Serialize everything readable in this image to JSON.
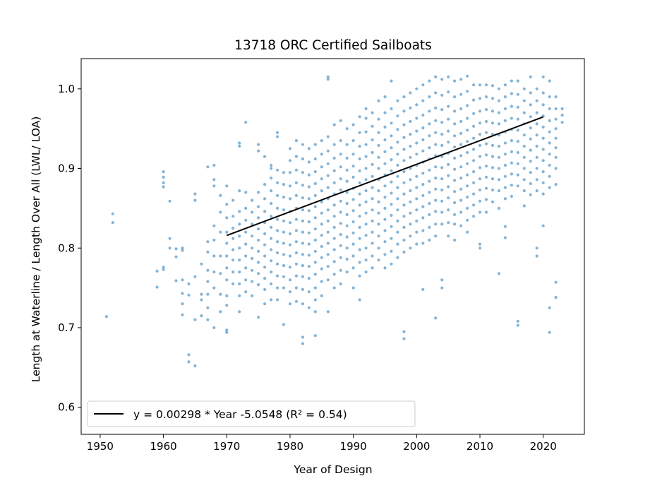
{
  "chart_data": {
    "type": "scatter",
    "title": "13718 ORC Certified Sailboats",
    "xlabel": "Year of Design",
    "ylabel": "Length at Waterline / Length Over All (LWL/ LOA)",
    "xlim": [
      1947,
      2026.5
    ],
    "ylim": [
      0.566,
      1.038
    ],
    "xticks": [
      "1950",
      "1960",
      "1970",
      "1980",
      "1990",
      "2000",
      "2010",
      "2020"
    ],
    "yticks": [
      "0.6",
      "0.7",
      "0.8",
      "0.9",
      "1.0"
    ],
    "grid": false,
    "legend_position": "bottom-left",
    "point_color": "#1f77b4",
    "fit_color": "#000000",
    "fit_line": {
      "label": "y = 0.00298 * Year -5.0548 (R² = 0.54)",
      "slope": 0.00298,
      "intercept": -5.0548,
      "x_range": [
        1970,
        2020
      ]
    },
    "point_clusters": [
      {
        "x": 1951,
        "y": [
          0.714
        ]
      },
      {
        "x": 1952,
        "y": [
          0.843,
          0.832
        ]
      },
      {
        "x": 1959,
        "y": [
          0.771,
          0.751
        ]
      },
      {
        "x": 1960,
        "y": [
          0.896,
          0.889,
          0.882,
          0.877,
          0.776,
          0.773
        ]
      },
      {
        "x": 1961,
        "y": [
          0.859,
          0.812,
          0.8
        ]
      },
      {
        "x": 1962,
        "y": [
          0.799,
          0.789,
          0.759
        ]
      },
      {
        "x": 1963,
        "y": [
          0.8,
          0.797,
          0.76,
          0.743,
          0.73,
          0.716
        ]
      },
      {
        "x": 1964,
        "y": [
          0.755,
          0.741,
          0.666,
          0.657
        ]
      },
      {
        "x": 1965,
        "y": [
          0.868,
          0.86,
          0.764,
          0.71,
          0.652
        ]
      },
      {
        "x": 1966,
        "y": [
          0.78,
          0.742,
          0.735,
          0.715
        ]
      },
      {
        "x": 1967,
        "y": [
          0.902,
          0.808,
          0.795,
          0.772,
          0.758,
          0.742,
          0.725,
          0.71
        ]
      },
      {
        "x": 1968,
        "y": [
          0.904,
          0.886,
          0.878,
          0.828,
          0.81,
          0.79,
          0.77,
          0.75,
          0.7
        ]
      },
      {
        "x": 1969,
        "y": [
          0.866,
          0.845,
          0.82,
          0.79,
          0.768,
          0.742,
          0.72
        ]
      },
      {
        "x": 1970,
        "y": [
          0.878,
          0.855,
          0.838,
          0.82,
          0.806,
          0.79,
          0.775,
          0.76,
          0.74,
          0.728,
          0.697,
          0.694
        ]
      },
      {
        "x": 1971,
        "y": [
          0.86,
          0.84,
          0.825,
          0.812,
          0.798,
          0.785,
          0.77,
          0.755
        ]
      },
      {
        "x": 1972,
        "y": [
          0.932,
          0.928,
          0.872,
          0.846,
          0.83,
          0.815,
          0.8,
          0.785,
          0.77,
          0.755,
          0.74,
          0.72
        ]
      },
      {
        "x": 1973,
        "y": [
          0.958,
          0.87,
          0.85,
          0.835,
          0.82,
          0.805,
          0.79,
          0.775,
          0.76,
          0.745
        ]
      },
      {
        "x": 1974,
        "y": [
          0.86,
          0.845,
          0.83,
          0.815,
          0.8,
          0.787,
          0.772,
          0.758,
          0.74
        ]
      },
      {
        "x": 1975,
        "y": [
          0.93,
          0.922,
          0.87,
          0.852,
          0.838,
          0.824,
          0.81,
          0.796,
          0.782,
          0.768,
          0.754,
          0.713
        ]
      },
      {
        "x": 1976,
        "y": [
          0.915,
          0.88,
          0.862,
          0.846,
          0.832,
          0.818,
          0.804,
          0.79,
          0.776,
          0.762,
          0.748,
          0.73
        ]
      },
      {
        "x": 1977,
        "y": [
          0.904,
          0.9,
          0.888,
          0.872,
          0.856,
          0.84,
          0.826,
          0.812,
          0.798,
          0.784,
          0.77,
          0.755,
          0.735
        ]
      },
      {
        "x": 1978,
        "y": [
          0.945,
          0.94,
          0.898,
          0.882,
          0.866,
          0.85,
          0.836,
          0.822,
          0.808,
          0.794,
          0.78,
          0.765,
          0.75,
          0.735
        ]
      },
      {
        "x": 1979,
        "y": [
          0.895,
          0.88,
          0.864,
          0.848,
          0.834,
          0.82,
          0.806,
          0.792,
          0.778,
          0.764,
          0.75,
          0.704
        ]
      },
      {
        "x": 1980,
        "y": [
          0.925,
          0.91,
          0.895,
          0.878,
          0.862,
          0.846,
          0.832,
          0.818,
          0.804,
          0.79,
          0.776,
          0.76,
          0.745,
          0.73
        ]
      },
      {
        "x": 1981,
        "y": [
          0.935,
          0.915,
          0.898,
          0.882,
          0.866,
          0.85,
          0.836,
          0.822,
          0.808,
          0.794,
          0.78,
          0.765,
          0.75,
          0.733
        ]
      },
      {
        "x": 1982,
        "y": [
          0.93,
          0.912,
          0.895,
          0.879,
          0.863,
          0.848,
          0.834,
          0.82,
          0.806,
          0.792,
          0.778,
          0.764,
          0.748,
          0.73,
          0.688,
          0.68
        ]
      },
      {
        "x": 1983,
        "y": [
          0.925,
          0.908,
          0.892,
          0.877,
          0.862,
          0.847,
          0.833,
          0.819,
          0.805,
          0.791,
          0.777,
          0.762,
          0.745,
          0.725
        ]
      },
      {
        "x": 1984,
        "y": [
          0.93,
          0.912,
          0.896,
          0.881,
          0.866,
          0.852,
          0.838,
          0.824,
          0.81,
          0.796,
          0.782,
          0.767,
          0.75,
          0.735,
          0.72,
          0.69
        ]
      },
      {
        "x": 1985,
        "y": [
          0.935,
          0.918,
          0.902,
          0.887,
          0.872,
          0.858,
          0.844,
          0.83,
          0.816,
          0.802,
          0.788,
          0.774,
          0.758,
          0.74
        ]
      },
      {
        "x": 1986,
        "y": [
          1.015,
          1.012,
          0.94,
          0.922,
          0.906,
          0.891,
          0.876,
          0.862,
          0.848,
          0.834,
          0.82,
          0.806,
          0.792,
          0.777,
          0.76,
          0.72
        ]
      },
      {
        "x": 1987,
        "y": [
          0.955,
          0.93,
          0.913,
          0.897,
          0.882,
          0.868,
          0.854,
          0.84,
          0.826,
          0.812,
          0.798,
          0.783,
          0.767,
          0.75
        ]
      },
      {
        "x": 1988,
        "y": [
          0.96,
          0.935,
          0.918,
          0.902,
          0.887,
          0.873,
          0.859,
          0.845,
          0.831,
          0.817,
          0.803,
          0.788,
          0.772,
          0.755
        ]
      },
      {
        "x": 1989,
        "y": [
          0.95,
          0.93,
          0.913,
          0.898,
          0.884,
          0.87,
          0.856,
          0.842,
          0.828,
          0.814,
          0.8,
          0.786,
          0.77
        ]
      },
      {
        "x": 1990,
        "y": [
          0.955,
          0.935,
          0.918,
          0.903,
          0.889,
          0.875,
          0.861,
          0.847,
          0.833,
          0.819,
          0.805,
          0.79,
          0.775,
          0.75
        ]
      },
      {
        "x": 1991,
        "y": [
          0.965,
          0.945,
          0.928,
          0.912,
          0.897,
          0.882,
          0.868,
          0.854,
          0.84,
          0.826,
          0.812,
          0.798,
          0.782,
          0.765,
          0.735
        ]
      },
      {
        "x": 1992,
        "y": [
          0.975,
          0.963,
          0.946,
          0.93,
          0.915,
          0.9,
          0.886,
          0.872,
          0.858,
          0.844,
          0.83,
          0.816,
          0.8,
          0.785,
          0.77
        ]
      },
      {
        "x": 1993,
        "y": [
          0.97,
          0.953,
          0.936,
          0.92,
          0.905,
          0.89,
          0.876,
          0.862,
          0.848,
          0.834,
          0.82,
          0.806,
          0.79,
          0.775
        ]
      },
      {
        "x": 1994,
        "y": [
          0.985,
          0.962,
          0.945,
          0.929,
          0.914,
          0.9,
          0.886,
          0.872,
          0.858,
          0.844,
          0.83,
          0.815,
          0.8,
          0.785
        ]
      },
      {
        "x": 1995,
        "y": [
          0.99,
          0.97,
          0.952,
          0.936,
          0.921,
          0.906,
          0.892,
          0.878,
          0.864,
          0.85,
          0.836,
          0.822,
          0.808,
          0.792,
          0.775
        ]
      },
      {
        "x": 1996,
        "y": [
          1.01,
          0.975,
          0.957,
          0.941,
          0.926,
          0.911,
          0.897,
          0.883,
          0.869,
          0.855,
          0.841,
          0.827,
          0.812,
          0.796,
          0.78
        ]
      },
      {
        "x": 1997,
        "y": [
          0.985,
          0.966,
          0.949,
          0.933,
          0.918,
          0.904,
          0.89,
          0.876,
          0.862,
          0.848,
          0.834,
          0.82,
          0.805,
          0.788
        ]
      },
      {
        "x": 1998,
        "y": [
          0.99,
          0.972,
          0.955,
          0.939,
          0.924,
          0.91,
          0.896,
          0.882,
          0.868,
          0.854,
          0.84,
          0.826,
          0.81,
          0.795,
          0.695,
          0.686
        ]
      },
      {
        "x": 1999,
        "y": [
          0.995,
          0.976,
          0.959,
          0.943,
          0.928,
          0.914,
          0.9,
          0.886,
          0.872,
          0.858,
          0.844,
          0.83,
          0.815,
          0.8
        ]
      },
      {
        "x": 2000,
        "y": [
          1.0,
          0.98,
          0.963,
          0.947,
          0.932,
          0.918,
          0.904,
          0.89,
          0.876,
          0.862,
          0.848,
          0.834,
          0.82,
          0.805
        ]
      },
      {
        "x": 2001,
        "y": [
          1.005,
          0.985,
          0.967,
          0.951,
          0.936,
          0.922,
          0.908,
          0.894,
          0.88,
          0.866,
          0.852,
          0.838,
          0.822,
          0.806,
          0.748
        ]
      },
      {
        "x": 2002,
        "y": [
          1.01,
          0.99,
          0.972,
          0.956,
          0.941,
          0.926,
          0.912,
          0.898,
          0.884,
          0.87,
          0.856,
          0.842,
          0.826,
          0.81
        ]
      },
      {
        "x": 2003,
        "y": [
          1.015,
          0.995,
          0.976,
          0.96,
          0.945,
          0.93,
          0.916,
          0.902,
          0.888,
          0.874,
          0.86,
          0.846,
          0.83,
          0.815,
          0.712
        ]
      },
      {
        "x": 2004,
        "y": [
          1.012,
          0.992,
          0.974,
          0.958,
          0.943,
          0.929,
          0.915,
          0.901,
          0.887,
          0.873,
          0.859,
          0.845,
          0.83,
          0.76,
          0.75
        ]
      },
      {
        "x": 2005,
        "y": [
          1.015,
          0.996,
          0.978,
          0.962,
          0.947,
          0.933,
          0.919,
          0.905,
          0.891,
          0.877,
          0.863,
          0.848,
          0.832,
          0.815
        ]
      },
      {
        "x": 2006,
        "y": [
          1.01,
          0.99,
          0.972,
          0.956,
          0.941,
          0.927,
          0.913,
          0.899,
          0.885,
          0.871,
          0.857,
          0.842,
          0.83,
          0.81
        ]
      },
      {
        "x": 2007,
        "y": [
          1.012,
          0.993,
          0.975,
          0.959,
          0.944,
          0.93,
          0.916,
          0.902,
          0.888,
          0.874,
          0.86,
          0.845,
          0.828
        ]
      },
      {
        "x": 2008,
        "y": [
          1.016,
          0.997,
          0.979,
          0.963,
          0.948,
          0.934,
          0.92,
          0.906,
          0.892,
          0.878,
          0.864,
          0.85,
          0.835,
          0.82
        ]
      },
      {
        "x": 2009,
        "y": [
          1.005,
          0.986,
          0.969,
          0.953,
          0.938,
          0.924,
          0.91,
          0.896,
          0.882,
          0.868,
          0.854,
          0.84
        ]
      },
      {
        "x": 2010,
        "y": [
          1.005,
          0.988,
          0.972,
          0.957,
          0.943,
          0.929,
          0.915,
          0.901,
          0.887,
          0.873,
          0.859,
          0.845,
          0.805,
          0.8
        ]
      },
      {
        "x": 2011,
        "y": [
          1.005,
          0.99,
          0.974,
          0.959,
          0.945,
          0.931,
          0.917,
          0.903,
          0.889,
          0.875,
          0.861,
          0.845
        ]
      },
      {
        "x": 2012,
        "y": [
          1.004,
          0.988,
          0.972,
          0.957,
          0.943,
          0.929,
          0.915,
          0.901,
          0.887,
          0.873,
          0.858
        ]
      },
      {
        "x": 2013,
        "y": [
          1.0,
          0.985,
          0.97,
          0.956,
          0.942,
          0.928,
          0.914,
          0.9,
          0.886,
          0.872,
          0.85,
          0.768
        ]
      },
      {
        "x": 2014,
        "y": [
          1.005,
          0.99,
          0.975,
          0.96,
          0.946,
          0.932,
          0.918,
          0.904,
          0.89,
          0.876,
          0.862,
          0.827,
          0.813
        ]
      },
      {
        "x": 2015,
        "y": [
          1.01,
          0.994,
          0.978,
          0.963,
          0.949,
          0.935,
          0.921,
          0.907,
          0.893,
          0.879,
          0.865
        ]
      },
      {
        "x": 2016,
        "y": [
          1.01,
          0.993,
          0.977,
          0.962,
          0.948,
          0.934,
          0.92,
          0.906,
          0.892,
          0.878,
          0.708,
          0.703
        ]
      },
      {
        "x": 2017,
        "y": [
          1.0,
          0.985,
          0.97,
          0.956,
          0.942,
          0.928,
          0.914,
          0.9,
          0.886,
          0.872,
          0.853
        ]
      },
      {
        "x": 2018,
        "y": [
          1.015,
          0.995,
          0.98,
          0.965,
          0.951,
          0.937,
          0.923,
          0.909,
          0.895,
          0.881,
          0.867
        ]
      },
      {
        "x": 2019,
        "y": [
          1.0,
          0.985,
          0.97,
          0.956,
          0.942,
          0.928,
          0.914,
          0.9,
          0.886,
          0.872,
          0.8,
          0.79
        ]
      },
      {
        "x": 2020,
        "y": [
          1.015,
          0.995,
          0.98,
          0.966,
          0.952,
          0.938,
          0.924,
          0.91,
          0.896,
          0.882,
          0.868,
          0.828
        ]
      },
      {
        "x": 2021,
        "y": [
          1.01,
          0.99,
          0.975,
          0.96,
          0.946,
          0.932,
          0.918,
          0.904,
          0.89,
          0.876,
          0.725,
          0.694
        ]
      },
      {
        "x": 2022,
        "y": [
          0.99,
          0.975,
          0.962,
          0.95,
          0.938,
          0.926,
          0.914,
          0.9,
          0.88,
          0.757,
          0.738
        ]
      },
      {
        "x": 2023,
        "y": [
          0.975,
          0.967,
          0.958
        ]
      }
    ]
  }
}
